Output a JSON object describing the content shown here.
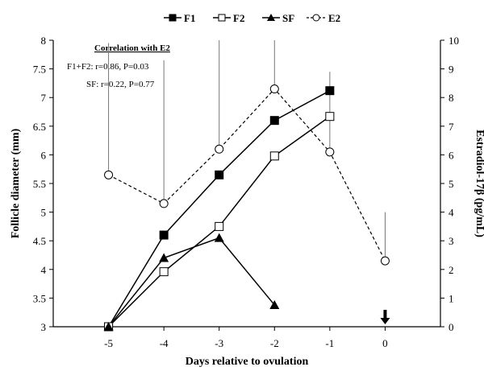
{
  "chart_data": {
    "type": "line",
    "xlabel": "Days relative to ovulation",
    "ylabel": "Follicle diameter (mm)",
    "ylabel_right": "Estradiol-17β (pg/mL)",
    "x_ticks": [
      "-5",
      "-4",
      "-3",
      "-2",
      "-1",
      "0"
    ],
    "y_ticks": [
      "3",
      "3.5",
      "4",
      "4.5",
      "5",
      "5.5",
      "6",
      "6.5",
      "7",
      "7.5",
      "8"
    ],
    "y2_ticks": [
      "0",
      "1",
      "2",
      "3",
      "4",
      "5",
      "6",
      "7",
      "8",
      "9",
      "10"
    ],
    "xlim": [
      -6,
      1
    ],
    "ylim": [
      3,
      8
    ],
    "y2lim": [
      0,
      10
    ],
    "legend_position": "top",
    "series": [
      {
        "name": "F1",
        "axis": "left",
        "marker": "filled-square",
        "line": "solid",
        "points": [
          {
            "x": -5,
            "y": 3.0
          },
          {
            "x": -4,
            "y": 4.6
          },
          {
            "x": -3,
            "y": 5.65
          },
          {
            "x": -2,
            "y": 6.6
          },
          {
            "x": -1,
            "y": 7.12
          }
        ]
      },
      {
        "name": "F2",
        "axis": "left",
        "marker": "open-square",
        "line": "solid",
        "points": [
          {
            "x": -5,
            "y": 3.0
          },
          {
            "x": -4,
            "y": 3.96
          },
          {
            "x": -3,
            "y": 4.75
          },
          {
            "x": -2,
            "y": 5.98
          },
          {
            "x": -1,
            "y": 6.67
          }
        ]
      },
      {
        "name": "SF",
        "axis": "left",
        "marker": "filled-triangle",
        "line": "solid",
        "points": [
          {
            "x": -5,
            "y": 3.0
          },
          {
            "x": -4,
            "y": 4.2
          },
          {
            "x": -3,
            "y": 4.55
          },
          {
            "x": -2,
            "y": 3.38
          }
        ]
      },
      {
        "name": "E2",
        "axis": "right",
        "marker": "open-circle",
        "line": "dashed",
        "points": [
          {
            "x": -5,
            "y": 5.3,
            "err_plus": 4.6
          },
          {
            "x": -4,
            "y": 4.3,
            "err_plus": 5.0
          },
          {
            "x": -3,
            "y": 6.2,
            "err_plus": 3.8
          },
          {
            "x": -2,
            "y": 8.3,
            "err_plus": 1.7
          },
          {
            "x": -1,
            "y": 6.1,
            "err_plus": 2.8
          },
          {
            "x": 0,
            "y": 2.3,
            "err_plus": 1.7
          }
        ]
      }
    ],
    "annotations": {
      "title": "Correlation with E2",
      "line1": "F1+F2: r=0.86, P=0.03",
      "line2": "SF: r=0.22, P=0.77"
    },
    "ovulation_marker": {
      "x": 0,
      "symbol": "arrow-down"
    }
  }
}
